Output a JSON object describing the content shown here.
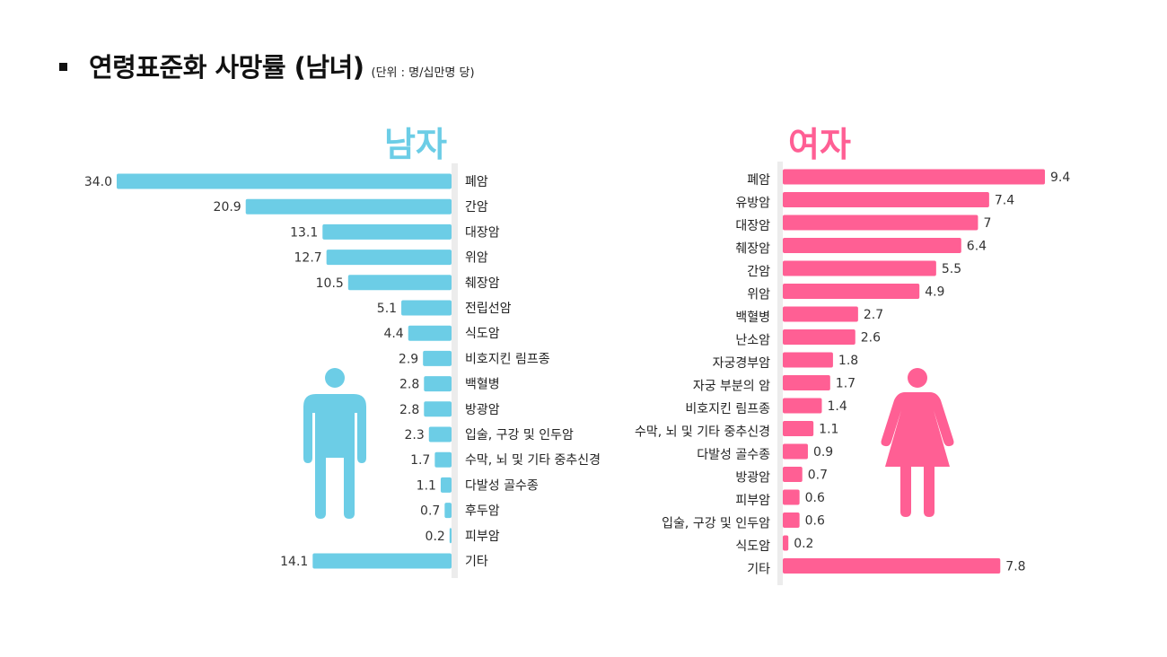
{
  "header": {
    "title": "연령표준화 사망률 (남녀)",
    "unit": "(단위 : 명/십만명 당)"
  },
  "colors": {
    "male": "#6ccde6",
    "female": "#ff5f94",
    "axis": "#ececec"
  },
  "icons": {
    "male": "male-figure-icon",
    "female": "female-figure-icon"
  },
  "chart_data": [
    {
      "type": "bar",
      "orientation": "horizontal",
      "title": "남자",
      "categories": [
        "폐암",
        "간암",
        "대장암",
        "위암",
        "췌장암",
        "전립선암",
        "식도암",
        "비호지킨 림프종",
        "백혈병",
        "방광암",
        "입술, 구강 및 인두암",
        "수막, 뇌 및 기타 중추신경",
        "다발성 골수종",
        "후두암",
        "피부암",
        "기타"
      ],
      "values": [
        34.0,
        20.9,
        13.1,
        12.7,
        10.5,
        5.1,
        4.4,
        2.9,
        2.8,
        2.8,
        2.3,
        1.7,
        1.1,
        0.7,
        0.2,
        14.1
      ],
      "value_labels": [
        "34.0",
        "20.9",
        "13.1",
        "12.7",
        "10.5",
        "5.1",
        "4.4",
        "2.9",
        "2.8",
        "2.8",
        "2.3",
        "1.7",
        "1.1",
        "0.7",
        "0.2",
        "14.1"
      ],
      "xlim": [
        0,
        34.0
      ]
    },
    {
      "type": "bar",
      "orientation": "horizontal",
      "title": "여자",
      "categories": [
        "폐암",
        "유방암",
        "대장암",
        "췌장암",
        "간암",
        "위암",
        "백혈병",
        "난소암",
        "자궁경부암",
        "자궁 부분의 암",
        "비호지킨 림프종",
        "수막, 뇌 및 기타 중추신경",
        "다발성 골수종",
        "방광암",
        "피부암",
        "입술, 구강 및 인두암",
        "식도암",
        "기타"
      ],
      "values": [
        9.4,
        7.4,
        7,
        6.4,
        5.5,
        4.9,
        2.7,
        2.6,
        1.8,
        1.7,
        1.4,
        1.1,
        0.9,
        0.7,
        0.6,
        0.6,
        0.2,
        7.8
      ],
      "value_labels": [
        "9.4",
        "7.4",
        "7",
        "6.4",
        "5.5",
        "4.9",
        "2.7",
        "2.6",
        "1.8",
        "1.7",
        "1.4",
        "1.1",
        "0.9",
        "0.7",
        "0.6",
        "0.6",
        "0.2",
        "7.8"
      ],
      "xlim": [
        0,
        9.4
      ]
    }
  ]
}
